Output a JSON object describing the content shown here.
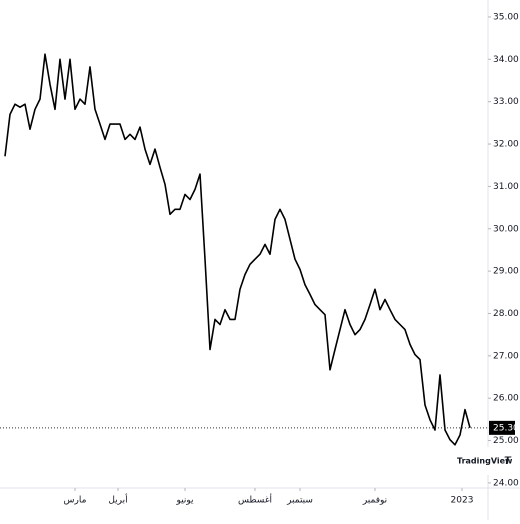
{
  "chart_data": {
    "type": "line",
    "series": [
      {
        "name": "Price",
        "color": "#000000",
        "values": [
          31.71,
          32.7,
          32.94,
          32.87,
          32.94,
          32.35,
          32.82,
          33.06,
          34.12,
          33.41,
          32.82,
          34.0,
          33.06,
          34.0,
          32.82,
          33.06,
          32.94,
          33.82,
          32.82,
          32.47,
          32.11,
          32.47,
          32.47,
          32.47,
          32.11,
          32.23,
          32.11,
          32.4,
          31.88,
          31.52,
          31.88,
          31.45,
          31.05,
          30.34,
          30.46,
          30.46,
          30.81,
          30.69,
          30.93,
          31.29,
          29.28,
          27.15,
          27.86,
          27.74,
          28.09,
          27.86,
          27.86,
          28.57,
          28.92,
          29.16,
          29.28,
          29.4,
          29.63,
          29.4,
          30.22,
          30.46,
          30.22,
          29.75,
          29.28,
          29.04,
          28.68,
          28.45,
          28.21,
          28.09,
          27.97,
          26.67,
          27.15,
          27.62,
          28.09,
          27.74,
          27.5,
          27.62,
          27.86,
          28.21,
          28.57,
          28.09,
          28.33,
          28.09,
          27.86,
          27.74,
          27.62,
          27.27,
          27.03,
          26.91,
          25.84,
          25.49,
          25.25,
          26.55,
          25.25,
          25.02,
          24.9,
          25.13,
          25.73,
          25.3
        ]
      }
    ],
    "last_value_label": "25.30",
    "xlim": [
      0,
      96.6
    ],
    "xticks": [
      {
        "value": 14,
        "label": "مارس"
      },
      {
        "value": 22.6,
        "label": "أبريل"
      },
      {
        "value": 36,
        "label": "يونيو"
      },
      {
        "value": 50,
        "label": "أغسطس"
      },
      {
        "value": 59,
        "label": "سبتمبر"
      },
      {
        "value": 74,
        "label": "نوفمبر"
      },
      {
        "value": 91.4,
        "label": "2023"
      }
    ],
    "ylim": [
      23.88,
      35.4
    ],
    "yticks": [
      {
        "value": 24,
        "label": "24.00"
      },
      {
        "value": 25,
        "label": "25.00"
      },
      {
        "value": 26,
        "label": "26.00"
      },
      {
        "value": 27,
        "label": "27.00"
      },
      {
        "value": 28,
        "label": "28.00"
      },
      {
        "value": 29,
        "label": "29.00"
      },
      {
        "value": 30,
        "label": "30.00"
      },
      {
        "value": 31,
        "label": "31.00"
      },
      {
        "value": 32,
        "label": "32.00"
      },
      {
        "value": 33,
        "label": "33.00"
      },
      {
        "value": 34,
        "label": "34.00"
      },
      {
        "value": 35,
        "label": "35.00"
      }
    ],
    "watermark": "TradingView",
    "grid": false
  }
}
